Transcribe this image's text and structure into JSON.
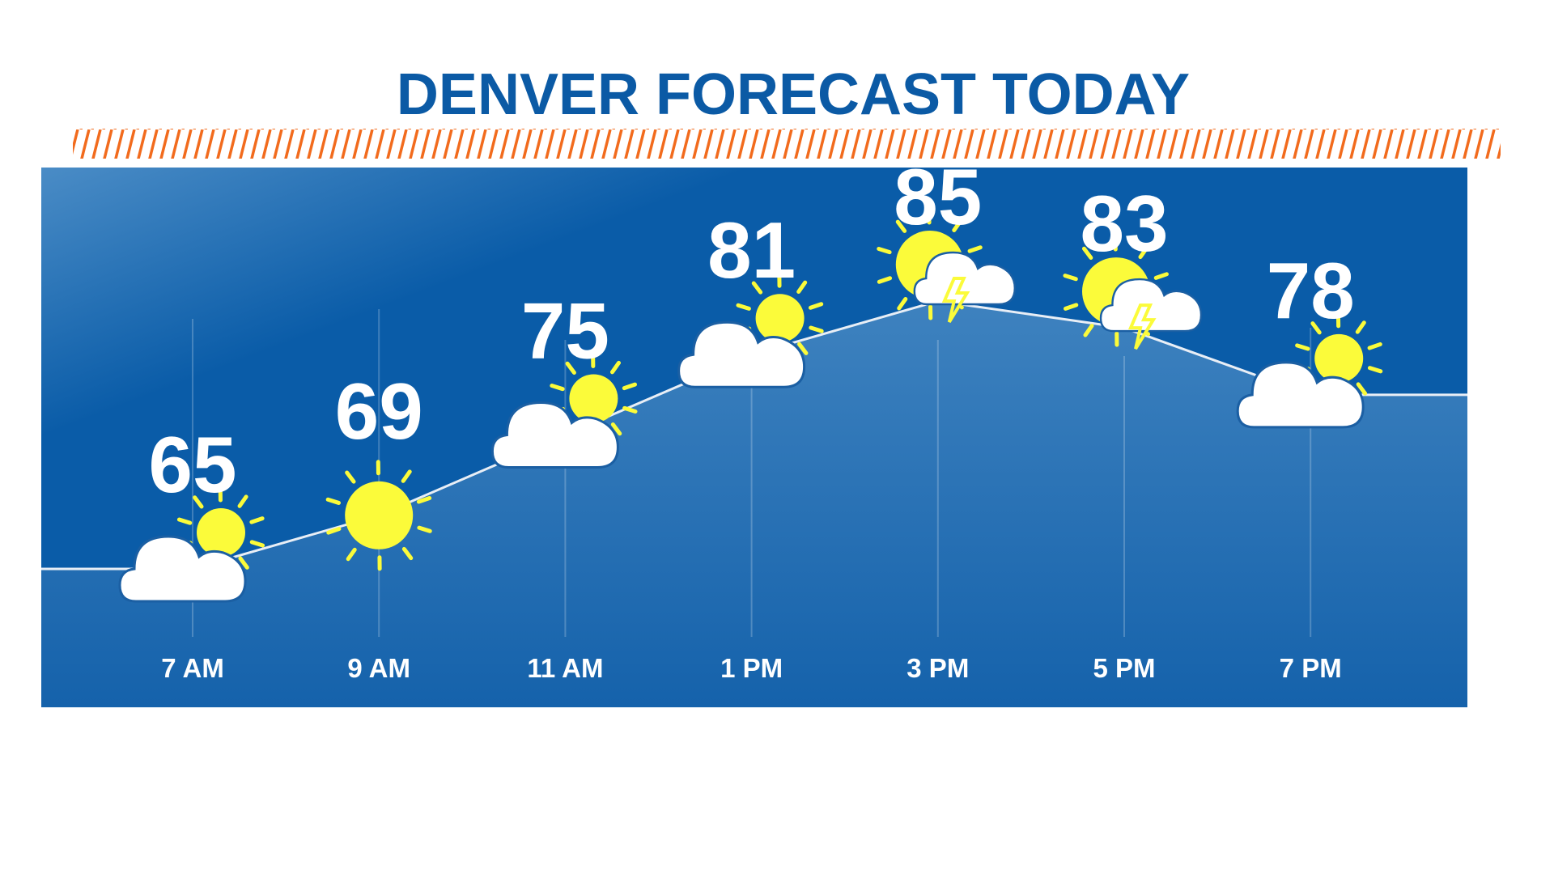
{
  "chart_data": {
    "type": "line",
    "title": "DENVER FORECAST TODAY",
    "categories": [
      "7 AM",
      "9 AM",
      "11 AM",
      "1 PM",
      "3 PM",
      "5 PM",
      "7 PM"
    ],
    "values": [
      65,
      69,
      75,
      81,
      85,
      83,
      78
    ],
    "conditions": [
      "partly-cloudy",
      "sunny",
      "partly-cloudy",
      "partly-cloudy",
      "thunderstorms",
      "thunderstorms",
      "partly-cloudy"
    ],
    "xlabel": "",
    "ylabel": "",
    "grid": "vertical",
    "legend": "none"
  },
  "colors": {
    "title": "#0b5aa5",
    "hatch": "#f26b1d",
    "panel": "#0a5ca8",
    "fill": "#2f7cc0",
    "sun": "#fbfb3a",
    "cloud": "#ffffff",
    "line": "#e8eef6"
  }
}
